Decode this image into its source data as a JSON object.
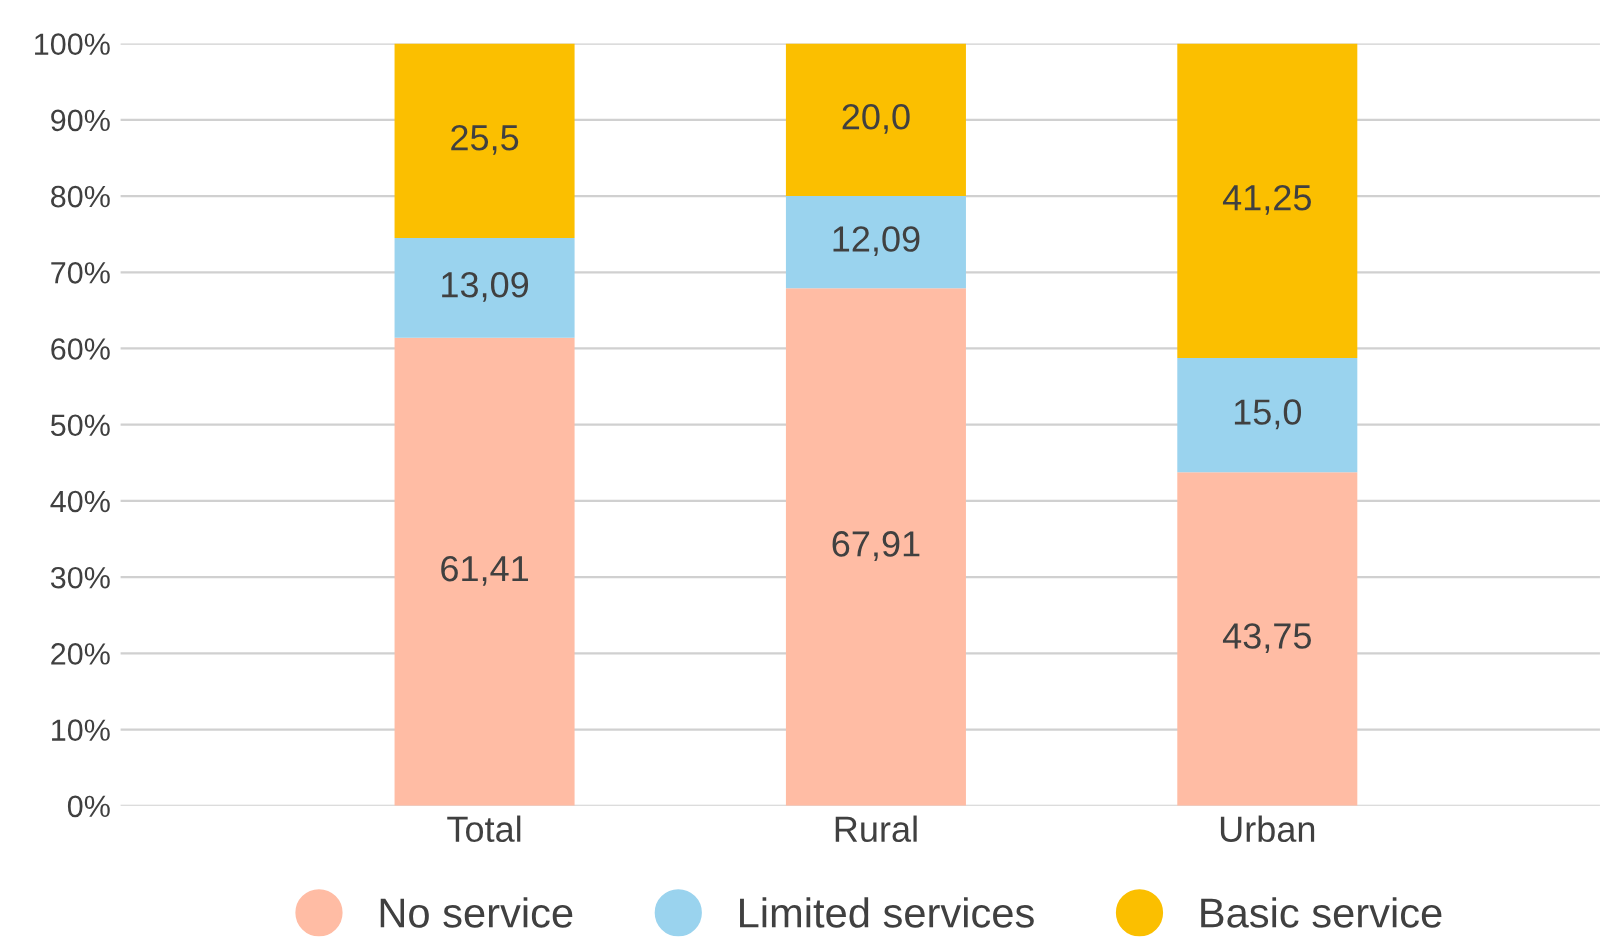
{
  "chart_data": {
    "type": "bar",
    "stacked": true,
    "categories": [
      "Total",
      "Rural",
      "Urban"
    ],
    "series": [
      {
        "name": "No service",
        "color": "#ffbca4",
        "values": [
          61.41,
          67.91,
          43.75
        ],
        "value_labels": [
          "61,41",
          "67,91",
          "43,75"
        ]
      },
      {
        "name": "Limited services",
        "color": "#9ad3ee",
        "values": [
          13.09,
          12.09,
          15.0
        ],
        "value_labels": [
          "13,09",
          "12,09",
          "15,0"
        ]
      },
      {
        "name": "Basic service",
        "color": "#fbbf00",
        "values": [
          25.5,
          20.0,
          41.25
        ],
        "value_labels": [
          "25,5",
          "20,0",
          "41,25"
        ]
      }
    ],
    "ylim": [
      0,
      100
    ],
    "yticks": [
      {
        "value": 0,
        "label": "0%"
      },
      {
        "value": 10,
        "label": "10%"
      },
      {
        "value": 20,
        "label": "20%"
      },
      {
        "value": 30,
        "label": "30%"
      },
      {
        "value": 40,
        "label": "40%"
      },
      {
        "value": 50,
        "label": "50%"
      },
      {
        "value": 60,
        "label": "60%"
      },
      {
        "value": 70,
        "label": "70%"
      },
      {
        "value": 80,
        "label": "80%"
      },
      {
        "value": 90,
        "label": "90%"
      },
      {
        "value": 100,
        "label": "100%"
      }
    ],
    "grid": "y",
    "legend": "bottom",
    "marker": "circle"
  }
}
